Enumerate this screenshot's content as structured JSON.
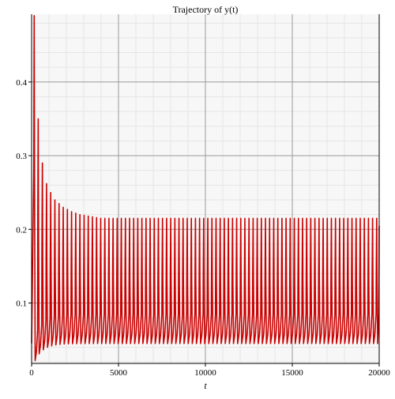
{
  "chart_data": {
    "type": "line",
    "title": "Trajectory of y(t)",
    "xlabel": "t",
    "ylabel": "",
    "xlim": [
      0,
      20000
    ],
    "ylim": [
      0.018,
      0.492
    ],
    "x_ticks": [
      0,
      5000,
      10000,
      15000,
      20000
    ],
    "x_tick_labels": [
      "0",
      "5000",
      "10000",
      "15000",
      "20000"
    ],
    "y_ticks": [
      0.1,
      0.2,
      0.3,
      0.4
    ],
    "y_tick_labels": [
      "0.1",
      "0.2",
      "0.3",
      "0.4"
    ],
    "grid": true,
    "legend": "none",
    "colors": {
      "line": "#cc0000",
      "plot_bg": "#f7f7f7",
      "major_grid": "#9a9a9a",
      "minor_grid": "#e6e6e6"
    },
    "series": [
      {
        "name": "",
        "oscillation": {
          "period": 237,
          "peak_times": [
            150,
            380,
            620,
            860,
            1100,
            1340,
            1580,
            1820,
            2060,
            2300,
            2540,
            2780,
            3020,
            3260,
            3500,
            3740
          ],
          "peak_values": [
            0.49,
            0.35,
            0.29,
            0.262,
            0.25,
            0.24,
            0.235,
            0.23,
            0.227,
            0.224,
            0.222,
            0.22,
            0.219,
            0.218,
            0.217,
            0.216
          ],
          "steady_peak": 0.215,
          "initial_trough": 0.022,
          "steady_trough": 0.045,
          "start_value": 0.045,
          "end_value": 0.205
        }
      }
    ]
  }
}
